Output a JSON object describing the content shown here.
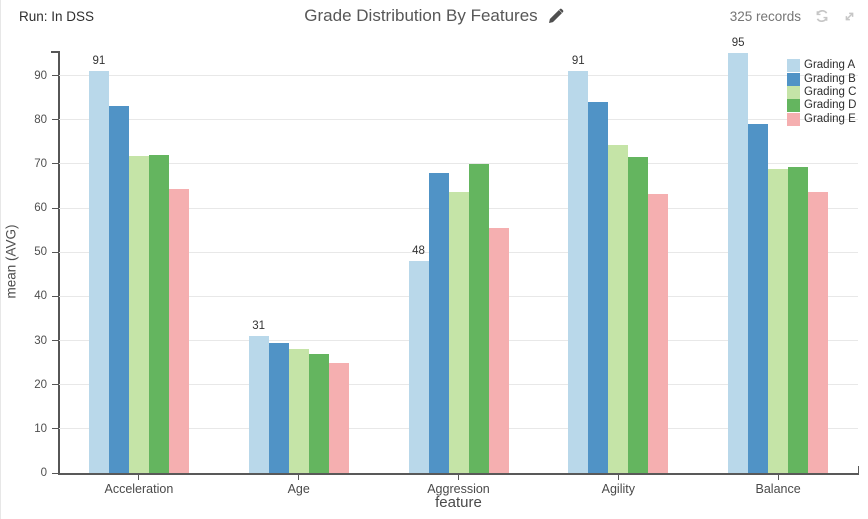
{
  "header": {
    "run_label": "Run: In DSS",
    "records_label": "325 records"
  },
  "colors": {
    "axis": "#595959",
    "grid": "#e8e8e8",
    "tick_text": "#4f4f4f",
    "title_text": "#575757",
    "value_label_text": "#333333",
    "icon_gray": "#c6c6c6",
    "pencil": "#4f4f4f"
  },
  "chart_data": {
    "type": "bar",
    "title": "Grade Distribution By Features",
    "xlabel": "feature",
    "ylabel": "mean (AVG)",
    "categories": [
      "Acceleration",
      "Age",
      "Aggression",
      "Agility",
      "Balance"
    ],
    "series": [
      {
        "name": "Grading A",
        "color": "#b9d8ea",
        "values": [
          91,
          31,
          48,
          91,
          95
        ]
      },
      {
        "name": "Grading B",
        "color": "#5093c6",
        "values": [
          83,
          29.5,
          68,
          84,
          79
        ]
      },
      {
        "name": "Grading C",
        "color": "#c5e4a7",
        "values": [
          71.7,
          28,
          63.7,
          74.3,
          68.8
        ]
      },
      {
        "name": "Grading D",
        "color": "#64b55f",
        "values": [
          72,
          27,
          70,
          71.5,
          69.2
        ]
      },
      {
        "name": "Grading E",
        "color": "#f5afb0",
        "values": [
          64.3,
          25,
          55.5,
          63.2,
          63.6
        ]
      }
    ],
    "bar_value_labels": {
      "series": "Grading A",
      "values": [
        "91",
        "31",
        "48",
        "91",
        "95"
      ]
    },
    "yticks": [
      0,
      10,
      20,
      30,
      40,
      50,
      60,
      70,
      80,
      90
    ],
    "ylim": [
      0,
      96
    ],
    "grid": "horizontal",
    "legend_position": "top-right"
  }
}
